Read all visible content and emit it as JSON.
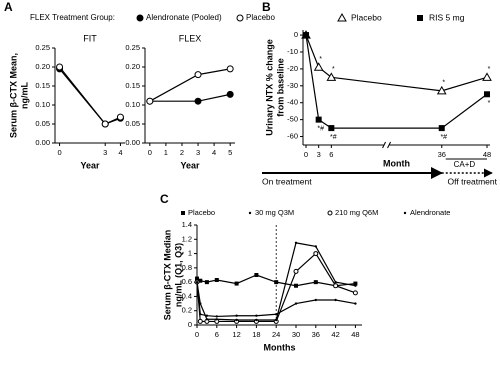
{
  "chart_data": [
    {
      "type": "line",
      "panel": "A",
      "legend_title": "FLEX Treatment Group:",
      "title": "FIT",
      "ylabel": [
        "Serum β-CTX Mean,",
        "ng/mL"
      ],
      "xlabel": "Year",
      "x": [
        0,
        3,
        4
      ],
      "xlim": [
        -0.3,
        4.3
      ],
      "xticks": [
        0,
        3,
        4
      ],
      "ylim": [
        0,
        0.25
      ],
      "yticks": [
        {
          "value": 0,
          "label": "0.00"
        },
        {
          "value": 0.05,
          "label": "0.05"
        },
        {
          "value": 0.1,
          "label": "0.10"
        },
        {
          "value": 0.15,
          "label": "0.15"
        },
        {
          "value": 0.2,
          "label": "0.20"
        },
        {
          "value": 0.25,
          "label": "0.25"
        }
      ],
      "series": [
        {
          "name": "Alendronate (Pooled)",
          "color": "#000000",
          "marker": "filled-circle",
          "values": [
            0.195,
            0.05,
            0.065
          ]
        },
        {
          "name": "Placebo",
          "color": "#000000",
          "marker": "open-circle",
          "values": [
            0.2,
            0.05,
            0.068
          ]
        }
      ]
    },
    {
      "type": "line",
      "title": "FLEX",
      "xlabel": "Year",
      "x": [
        0,
        3,
        5
      ],
      "xlim": [
        -0.3,
        5.3
      ],
      "xticks": [
        0,
        1,
        2,
        3,
        4,
        5
      ],
      "ylim": [
        0,
        0.25
      ],
      "yticks": [
        {
          "value": 0,
          "label": "0.00"
        },
        {
          "value": 0.05,
          "label": "0.05"
        },
        {
          "value": 0.1,
          "label": "0.10"
        },
        {
          "value": 0.15,
          "label": "0.15"
        },
        {
          "value": 0.2,
          "label": "0.20"
        },
        {
          "value": 0.25,
          "label": "0.25"
        }
      ],
      "series": [
        {
          "color": "#000000",
          "marker": "filled-circle",
          "values": [
            0.11,
            0.11,
            0.128
          ]
        },
        {
          "color": "#000000",
          "marker": "open-circle",
          "values": [
            0.11,
            0.18,
            0.195
          ]
        }
      ]
    },
    {
      "type": "line",
      "panel": "B",
      "ylabel": [
        "Urinary NTX % change",
        "from baseline"
      ],
      "xlabel": "Month",
      "x": [
        0,
        3,
        6,
        36,
        48
      ],
      "xlim": [
        0,
        48
      ],
      "xticks": [
        0,
        3,
        6,
        36,
        48
      ],
      "ylim": [
        -65,
        3
      ],
      "yticks": [
        -60,
        -50,
        -40,
        -30,
        -20,
        -10,
        0
      ],
      "period_label": "CA+D",
      "phase_labels": [
        "On treatment",
        "Off treatment"
      ],
      "series": [
        {
          "name": "Placebo",
          "color": "#000000",
          "marker": "open-triangle",
          "values": [
            0,
            -19,
            -25,
            -33,
            -25
          ],
          "point_labels": [
            null,
            "*",
            "*",
            "*",
            "*"
          ]
        },
        {
          "name": "RIS 5 mg",
          "color": "#000000",
          "marker": "filled-square",
          "values": [
            0,
            -50,
            -55,
            -55,
            -35
          ],
          "point_labels": [
            null,
            "*#",
            "*#",
            "*#",
            "*"
          ]
        }
      ]
    },
    {
      "type": "line",
      "panel": "C",
      "ylabel": [
        "Serum β-CTX Median",
        "ng/mL (Q1, Q3)"
      ],
      "xlabel": "Months",
      "x": [
        0,
        1,
        3,
        6,
        12,
        18,
        24,
        30,
        36,
        42,
        48
      ],
      "xlim": [
        0,
        50
      ],
      "xticks": [
        0,
        6,
        12,
        18,
        24,
        30,
        36,
        42,
        48
      ],
      "ylim": [
        0,
        1.4
      ],
      "yticks": [
        0,
        0.2,
        0.4,
        0.6,
        0.8,
        1,
        1.2,
        1.4
      ],
      "vline": 24,
      "series": [
        {
          "name": "Placebo",
          "color": "#000000",
          "marker": "filled-square",
          "values": [
            0.65,
            0.62,
            0.6,
            0.63,
            0.58,
            0.7,
            0.6,
            0.55,
            0.6,
            0.55,
            0.58
          ]
        },
        {
          "name": "30 mg Q3M",
          "color": "#000000",
          "marker": "dot",
          "values": [
            0.62,
            0.15,
            0.13,
            0.12,
            0.13,
            0.13,
            0.15,
            0.3,
            0.35,
            0.35,
            0.3
          ]
        },
        {
          "name": "210 mg Q6M",
          "color": "#000000",
          "marker": "open-circle",
          "values": [
            0.6,
            0.05,
            0.05,
            0.05,
            0.05,
            0.05,
            0.05,
            0.75,
            1,
            0.55,
            0.45
          ]
        },
        {
          "name": "Alendronate",
          "color": "#000000",
          "marker": "dot",
          "values": [
            0.6,
            0.3,
            0.08,
            0.08,
            0.07,
            0.07,
            0.07,
            1.15,
            1.1,
            0.6,
            0.55
          ]
        }
      ]
    }
  ]
}
